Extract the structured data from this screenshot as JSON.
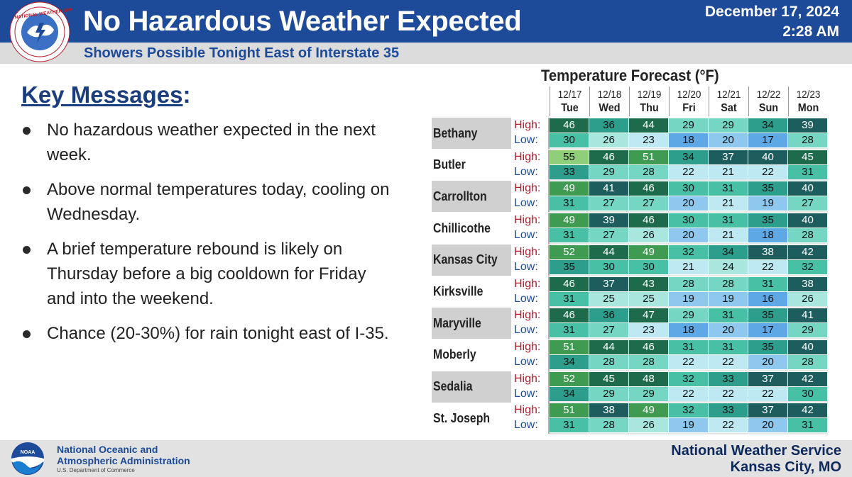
{
  "header": {
    "title": "No Hazardous Weather Expected",
    "subtitle": "Showers Possible Tonight East of Interstate 35",
    "date": "December 17, 2024",
    "time": "2:28 AM",
    "logo_text": "NATIONAL WEATHER SERVICE",
    "header_color": "#1d4b99"
  },
  "key_messages": {
    "heading": "Key Messages",
    "heading_suffix": ":",
    "bullets": [
      "No hazardous weather expected in the next week.",
      "Above normal temperatures today, cooling on Wednesday.",
      "A brief temperature rebound is likely on Thursday before a big cooldown for Friday and into the weekend.",
      "Chance (20-30%) for rain tonight east of I-35."
    ]
  },
  "forecast": {
    "title": "Temperature Forecast (°F)",
    "high_label": "High:",
    "low_label": "Low:",
    "days": [
      {
        "date": "12/17",
        "day": "Tue"
      },
      {
        "date": "12/18",
        "day": "Wed"
      },
      {
        "date": "12/19",
        "day": "Thu"
      },
      {
        "date": "12/20",
        "day": "Fri"
      },
      {
        "date": "12/21",
        "day": "Sat"
      },
      {
        "date": "12/22",
        "day": "Sun"
      },
      {
        "date": "12/23",
        "day": "Mon"
      }
    ],
    "cities": [
      {
        "name": "Bethany",
        "high": [
          46,
          36,
          44,
          29,
          29,
          34,
          39
        ],
        "low": [
          30,
          26,
          23,
          18,
          20,
          17,
          28
        ]
      },
      {
        "name": "Butler",
        "high": [
          55,
          46,
          51,
          34,
          37,
          40,
          45
        ],
        "low": [
          33,
          29,
          28,
          22,
          21,
          22,
          31
        ]
      },
      {
        "name": "Carrollton",
        "high": [
          49,
          41,
          46,
          30,
          31,
          35,
          40
        ],
        "low": [
          31,
          27,
          27,
          20,
          21,
          19,
          27
        ]
      },
      {
        "name": "Chillicothe",
        "high": [
          49,
          39,
          46,
          30,
          31,
          35,
          40
        ],
        "low": [
          31,
          27,
          26,
          20,
          21,
          18,
          28
        ]
      },
      {
        "name": "Kansas City",
        "high": [
          52,
          44,
          49,
          32,
          34,
          38,
          42
        ],
        "low": [
          35,
          30,
          30,
          21,
          24,
          22,
          32
        ]
      },
      {
        "name": "Kirksville",
        "high": [
          46,
          37,
          43,
          28,
          28,
          31,
          38
        ],
        "low": [
          31,
          25,
          25,
          19,
          19,
          16,
          26
        ]
      },
      {
        "name": "Maryville",
        "high": [
          46,
          36,
          47,
          29,
          31,
          35,
          41
        ],
        "low": [
          31,
          27,
          23,
          18,
          20,
          17,
          29
        ]
      },
      {
        "name": "Moberly",
        "high": [
          51,
          44,
          46,
          31,
          31,
          35,
          40
        ],
        "low": [
          34,
          28,
          28,
          22,
          22,
          20,
          28
        ]
      },
      {
        "name": "Sedalia",
        "high": [
          52,
          45,
          48,
          32,
          33,
          37,
          42
        ],
        "low": [
          34,
          29,
          29,
          22,
          22,
          22,
          30
        ]
      },
      {
        "name": "St. Joseph",
        "high": [
          51,
          38,
          49,
          32,
          33,
          37,
          42
        ],
        "low": [
          31,
          28,
          26,
          19,
          22,
          20,
          31
        ]
      }
    ]
  },
  "footer": {
    "noaa_logo_text": "NOAA",
    "noaa_line1": "National Oceanic and",
    "noaa_line2": "Atmospheric Administration",
    "noaa_dept": "U.S. Department of Commerce",
    "office_name": "National Weather Service",
    "office_city": "Kansas City, MO"
  }
}
